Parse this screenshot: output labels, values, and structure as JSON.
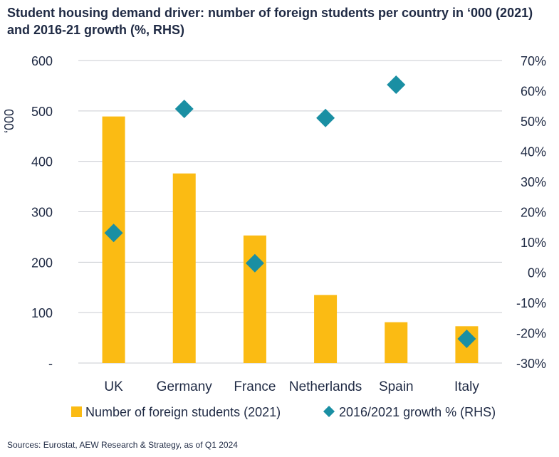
{
  "title": "Student housing demand driver: number of foreign students per country in ‘000 (2021) and 2016-21 growth (%, RHS)",
  "source": "Sources: Eurostat, AEW Research & Strategy, as of Q1 2024",
  "chart_data": {
    "type": "bar",
    "categories": [
      "UK",
      "Germany",
      "France",
      "Netherlands",
      "Spain",
      "Italy"
    ],
    "series": [
      {
        "name": "Number of foreign students (2021)",
        "type": "bar",
        "axis": "left",
        "values": [
          489,
          376,
          253,
          135,
          81,
          73
        ],
        "color": "#fbbb13"
      },
      {
        "name": "2016/2021 growth % (RHS)",
        "type": "scatter",
        "marker": "diamond",
        "axis": "right",
        "values": [
          13,
          54,
          3,
          51,
          62,
          -22
        ],
        "color": "#1a8fa3"
      }
    ],
    "ylabel": "‘000",
    "ylim": [
      0,
      600
    ],
    "y_ticks": [
      "-",
      "100",
      "200",
      "300",
      "400",
      "500",
      "600"
    ],
    "y2lim": [
      -30,
      70
    ],
    "y2_ticks": [
      "-30%",
      "-20%",
      "-10%",
      "0%",
      "10%",
      "20%",
      "30%",
      "40%",
      "50%",
      "60%",
      "70%"
    ],
    "grid": true,
    "legend": "bottom"
  }
}
